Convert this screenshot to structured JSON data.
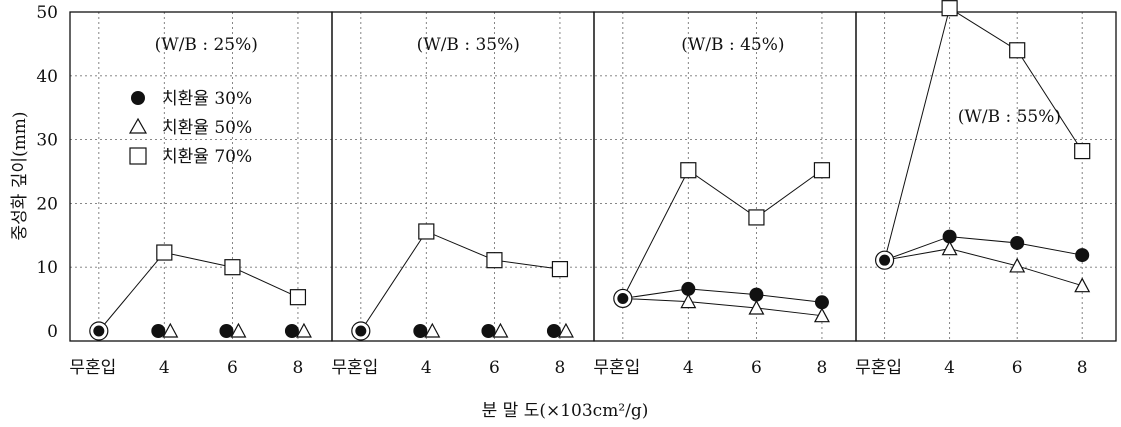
{
  "chart_data": {
    "type": "line",
    "ylabel": "중성화 깊이(mm)",
    "xlabel": "분 말 도(×103cm²/g)",
    "ylim": [
      0,
      50
    ],
    "yticks": [
      "0",
      "10",
      "20",
      "30",
      "40",
      "50"
    ],
    "categories": [
      "무혼입",
      "4",
      "6",
      "8"
    ],
    "grid": true,
    "legend": {
      "placement": "top-left of first panel",
      "entries": [
        {
          "label": "치환율 30%",
          "marker": "filled-circle"
        },
        {
          "label": "치환율 50%",
          "marker": "open-triangle"
        },
        {
          "label": "치환율 70%",
          "marker": "open-square"
        }
      ]
    },
    "panels": [
      {
        "annotation": "(W/B : 25%)",
        "series": [
          {
            "values": [
              0,
              0,
              0,
              0
            ]
          },
          {
            "values": [
              0,
              0,
              0,
              0
            ]
          },
          {
            "values": [
              0,
              12.3,
              10,
              5.3
            ]
          }
        ]
      },
      {
        "annotation": "(W/B : 35%)",
        "series": [
          {
            "values": [
              0,
              0,
              0,
              0
            ]
          },
          {
            "values": [
              0,
              0,
              0,
              0
            ]
          },
          {
            "values": [
              0,
              15.6,
              11.1,
              9.7
            ]
          }
        ]
      },
      {
        "annotation": "(W/B : 45%)",
        "series": [
          {
            "values": [
              5.1,
              6.6,
              5.7,
              4.5
            ]
          },
          {
            "values": [
              5.1,
              4.6,
              3.6,
              2.4
            ]
          },
          {
            "values": [
              5.1,
              25.2,
              17.8,
              25.2
            ]
          }
        ]
      },
      {
        "annotation": "(W/B : 55%)",
        "series": [
          {
            "values": [
              11.1,
              14.8,
              13.8,
              11.9
            ]
          },
          {
            "values": [
              11.1,
              12.9,
              10.2,
              7.1
            ]
          },
          {
            "values": [
              11.1,
              50.6,
              44,
              28.2
            ]
          }
        ]
      }
    ]
  }
}
